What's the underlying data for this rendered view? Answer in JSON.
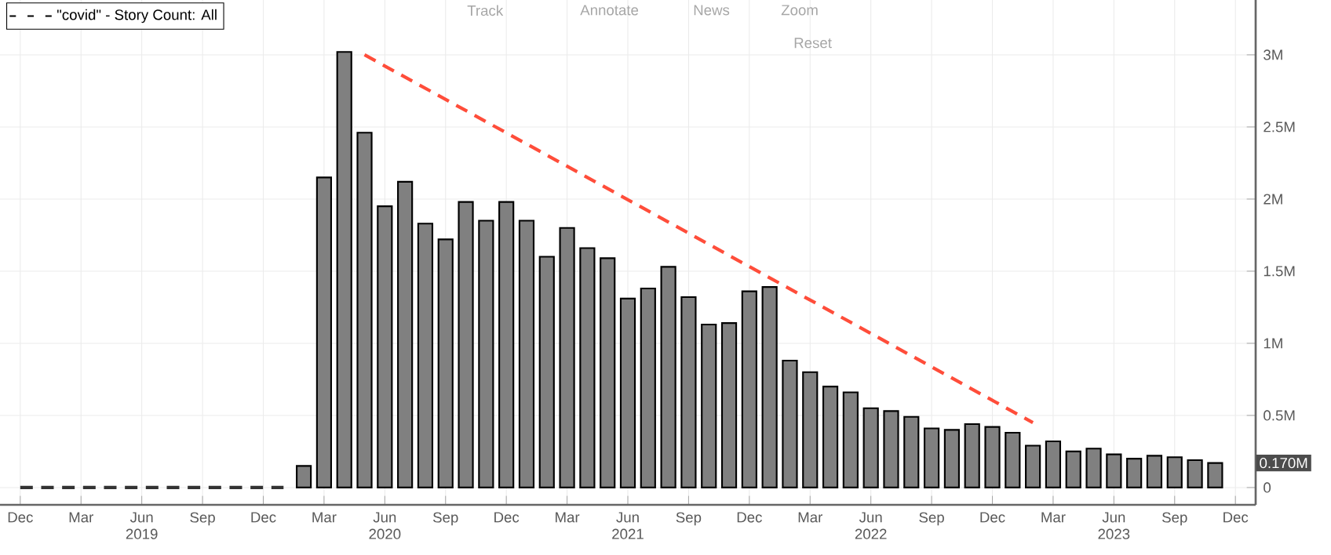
{
  "chart_data": {
    "type": "bar",
    "legend": "top left",
    "grid": true,
    "series": [
      {
        "name": "\"covid\" - Story Count: All",
        "color": "#808080",
        "x": [
          "2020-02",
          "2020-03",
          "2020-04",
          "2020-05",
          "2020-06",
          "2020-07",
          "2020-08",
          "2020-09",
          "2020-10",
          "2020-11",
          "2020-12",
          "2021-01",
          "2021-02",
          "2021-03",
          "2021-04",
          "2021-05",
          "2021-06",
          "2021-07",
          "2021-08",
          "2021-09",
          "2021-10",
          "2021-11",
          "2021-12",
          "2022-01",
          "2022-02",
          "2022-03",
          "2022-04",
          "2022-05",
          "2022-06",
          "2022-07",
          "2022-08",
          "2022-09",
          "2022-10",
          "2022-11",
          "2022-12",
          "2023-01",
          "2023-02",
          "2023-03",
          "2023-04",
          "2023-05",
          "2023-06",
          "2023-07",
          "2023-08",
          "2023-09",
          "2023-10",
          "2023-11"
        ],
        "values": [
          0.15,
          2.15,
          3.02,
          2.46,
          1.95,
          2.12,
          1.83,
          1.72,
          1.98,
          1.85,
          1.98,
          1.85,
          1.6,
          1.8,
          1.66,
          1.59,
          1.31,
          1.38,
          1.53,
          1.32,
          1.13,
          1.14,
          1.36,
          1.39,
          0.88,
          0.8,
          0.7,
          0.66,
          0.55,
          0.53,
          0.49,
          0.41,
          0.4,
          0.44,
          0.42,
          0.38,
          0.29,
          0.32,
          0.25,
          0.27,
          0.23,
          0.2,
          0.22,
          0.21,
          0.19,
          0.17
        ]
      },
      {
        "type": "line",
        "color": "#333333",
        "line_style": "dashed",
        "x": [
          "2018-12",
          "2020-01"
        ],
        "values": [
          0,
          0
        ]
      },
      {
        "type": "line",
        "color": "#ff4d3a",
        "line_style": "dashed",
        "x": [
          "2020-05",
          "2023-02"
        ],
        "values": [
          3.0,
          0.45
        ]
      }
    ],
    "xlim": [
      "2018-11",
      "2024-01"
    ],
    "xticks": [
      {
        "value": "2018-12",
        "label": "Dec"
      },
      {
        "value": "2019-03",
        "label": "Mar"
      },
      {
        "value": "2019-06",
        "label": "Jun 2019"
      },
      {
        "value": "2019-09",
        "label": "Sep"
      },
      {
        "value": "2019-12",
        "label": "Dec"
      },
      {
        "value": "2020-03",
        "label": "Mar"
      },
      {
        "value": "2020-06",
        "label": "Jun 2020"
      },
      {
        "value": "2020-09",
        "label": "Sep"
      },
      {
        "value": "2020-12",
        "label": "Dec"
      },
      {
        "value": "2021-03",
        "label": "Mar"
      },
      {
        "value": "2021-06",
        "label": "Jun 2021"
      },
      {
        "value": "2021-09",
        "label": "Sep"
      },
      {
        "value": "2021-12",
        "label": "Dec"
      },
      {
        "value": "2022-03",
        "label": "Mar"
      },
      {
        "value": "2022-06",
        "label": "Jun 2022"
      },
      {
        "value": "2022-09",
        "label": "Sep"
      },
      {
        "value": "2022-12",
        "label": "Dec"
      },
      {
        "value": "2023-03",
        "label": "Mar"
      },
      {
        "value": "2023-06",
        "label": "Jun 2023"
      },
      {
        "value": "2023-09",
        "label": "Sep"
      },
      {
        "value": "2023-12",
        "label": "Dec"
      }
    ],
    "ylim": [
      -0.12,
      3.38
    ],
    "yticks": [
      {
        "value": 0,
        "label": "0"
      },
      {
        "value": 0.5,
        "label": "0.5M"
      },
      {
        "value": 1,
        "label": "1M"
      },
      {
        "value": 1.5,
        "label": "1.5M"
      },
      {
        "value": 2,
        "label": "2M"
      },
      {
        "value": 2.5,
        "label": "2.5M"
      },
      {
        "value": 3,
        "label": "3M"
      }
    ],
    "annotations": [
      "Track",
      "Annotate",
      "News",
      "Zoom",
      "Reset",
      {
        "text": "0.170M",
        "y": 0.17
      }
    ]
  }
}
